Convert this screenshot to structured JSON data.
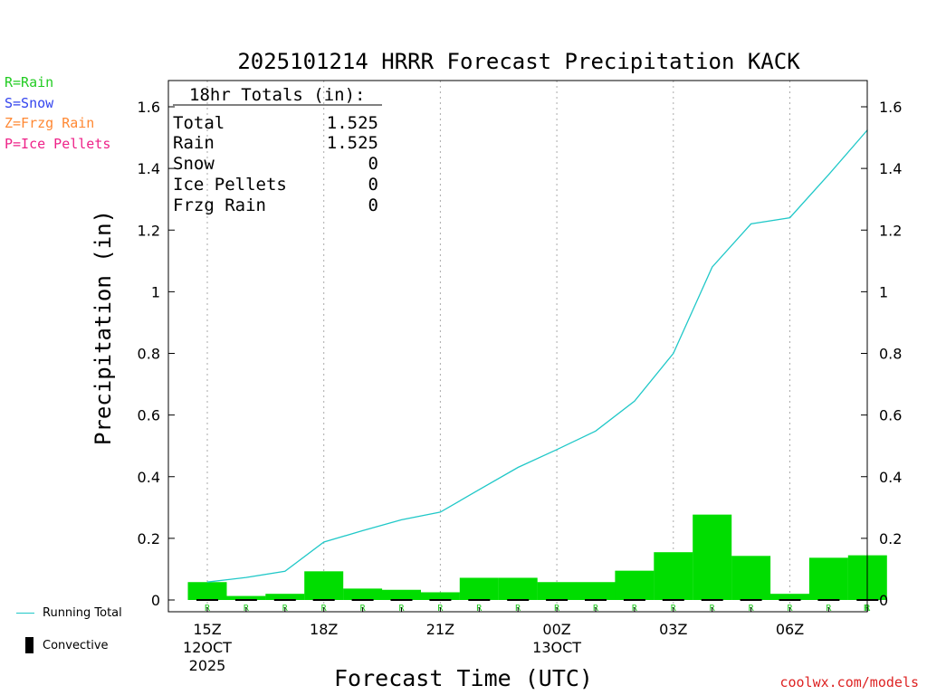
{
  "title": "2025101214 HRRR Forecast Precipitation KACK",
  "credit": "coolwx.com/models",
  "precip_types": [
    {
      "label": "R=Rain",
      "color": "#22cc22"
    },
    {
      "label": "S=Snow",
      "color": "#3344ee"
    },
    {
      "label": "Z=Frzg Rain",
      "color": "#ff8833"
    },
    {
      "label": "P=Ice Pellets",
      "color": "#ee2288"
    }
  ],
  "totals_box": {
    "heading": "18hr Totals (in):",
    "rows": [
      {
        "label": "Total",
        "value": "1.525"
      },
      {
        "label": "Rain",
        "value": "1.525"
      },
      {
        "label": "Snow",
        "value": "0"
      },
      {
        "label": "Ice Pellets",
        "value": "0"
      },
      {
        "label": "Frzg Rain",
        "value": "0"
      }
    ]
  },
  "legend": {
    "running_total": "Running Total",
    "convective": "Convective"
  },
  "colors": {
    "bar": "#00dd00",
    "line": "#20c8c8",
    "rain_marker": "#22cc22",
    "grid": "#aaaaaa"
  },
  "chart_data": {
    "type": "bar",
    "title": "2025101214 HRRR Forecast Precipitation KACK",
    "xlabel": "Forecast Time (UTC)",
    "ylabel": "Precipitation (in)",
    "ylim": [
      0,
      1.65
    ],
    "yticks": [
      0,
      0.2,
      0.4,
      0.6,
      0.8,
      1,
      1.2,
      1.4,
      1.6
    ],
    "ytick_labels": [
      "0",
      "0.2",
      "0.4",
      "0.6",
      "0.8",
      "1",
      "1.2",
      "1.4",
      "1.6"
    ],
    "grid": "vertical dotted at labeled hours",
    "x_hours": [
      15,
      16,
      17,
      18,
      19,
      20,
      21,
      22,
      23,
      24,
      25,
      26,
      27,
      28,
      29,
      30,
      31,
      32
    ],
    "x_tick_labels": [
      {
        "hour": 15,
        "lines": [
          "15Z",
          "12OCT",
          "2025"
        ]
      },
      {
        "hour": 18,
        "lines": [
          "18Z"
        ]
      },
      {
        "hour": 21,
        "lines": [
          "21Z"
        ]
      },
      {
        "hour": 24,
        "lines": [
          "00Z",
          "13OCT"
        ]
      },
      {
        "hour": 27,
        "lines": [
          "03Z"
        ]
      },
      {
        "hour": 30,
        "lines": [
          "06Z"
        ]
      }
    ],
    "series": [
      {
        "type": "bar",
        "values": [
          0.058,
          0.013,
          0.02,
          0.093,
          0.037,
          0.033,
          0.025,
          0.072,
          0.072,
          0.058,
          0.058,
          0.095,
          0.155,
          0.277,
          0.143,
          0.02,
          0.137,
          0.145
        ]
      },
      {
        "name": "Running Total",
        "type": "line",
        "values": [
          0.058,
          0.073,
          0.093,
          0.188,
          0.225,
          0.26,
          0.285,
          0.358,
          0.43,
          0.488,
          0.548,
          0.645,
          0.8,
          1.08,
          1.22,
          1.24,
          1.38,
          1.525
        ]
      }
    ],
    "precip_type_markers": [
      "R",
      "R",
      "R",
      "R",
      "R",
      "R",
      "R",
      "R",
      "R",
      "R",
      "R",
      "R",
      "R",
      "R",
      "R",
      "R",
      "R",
      "R"
    ]
  }
}
